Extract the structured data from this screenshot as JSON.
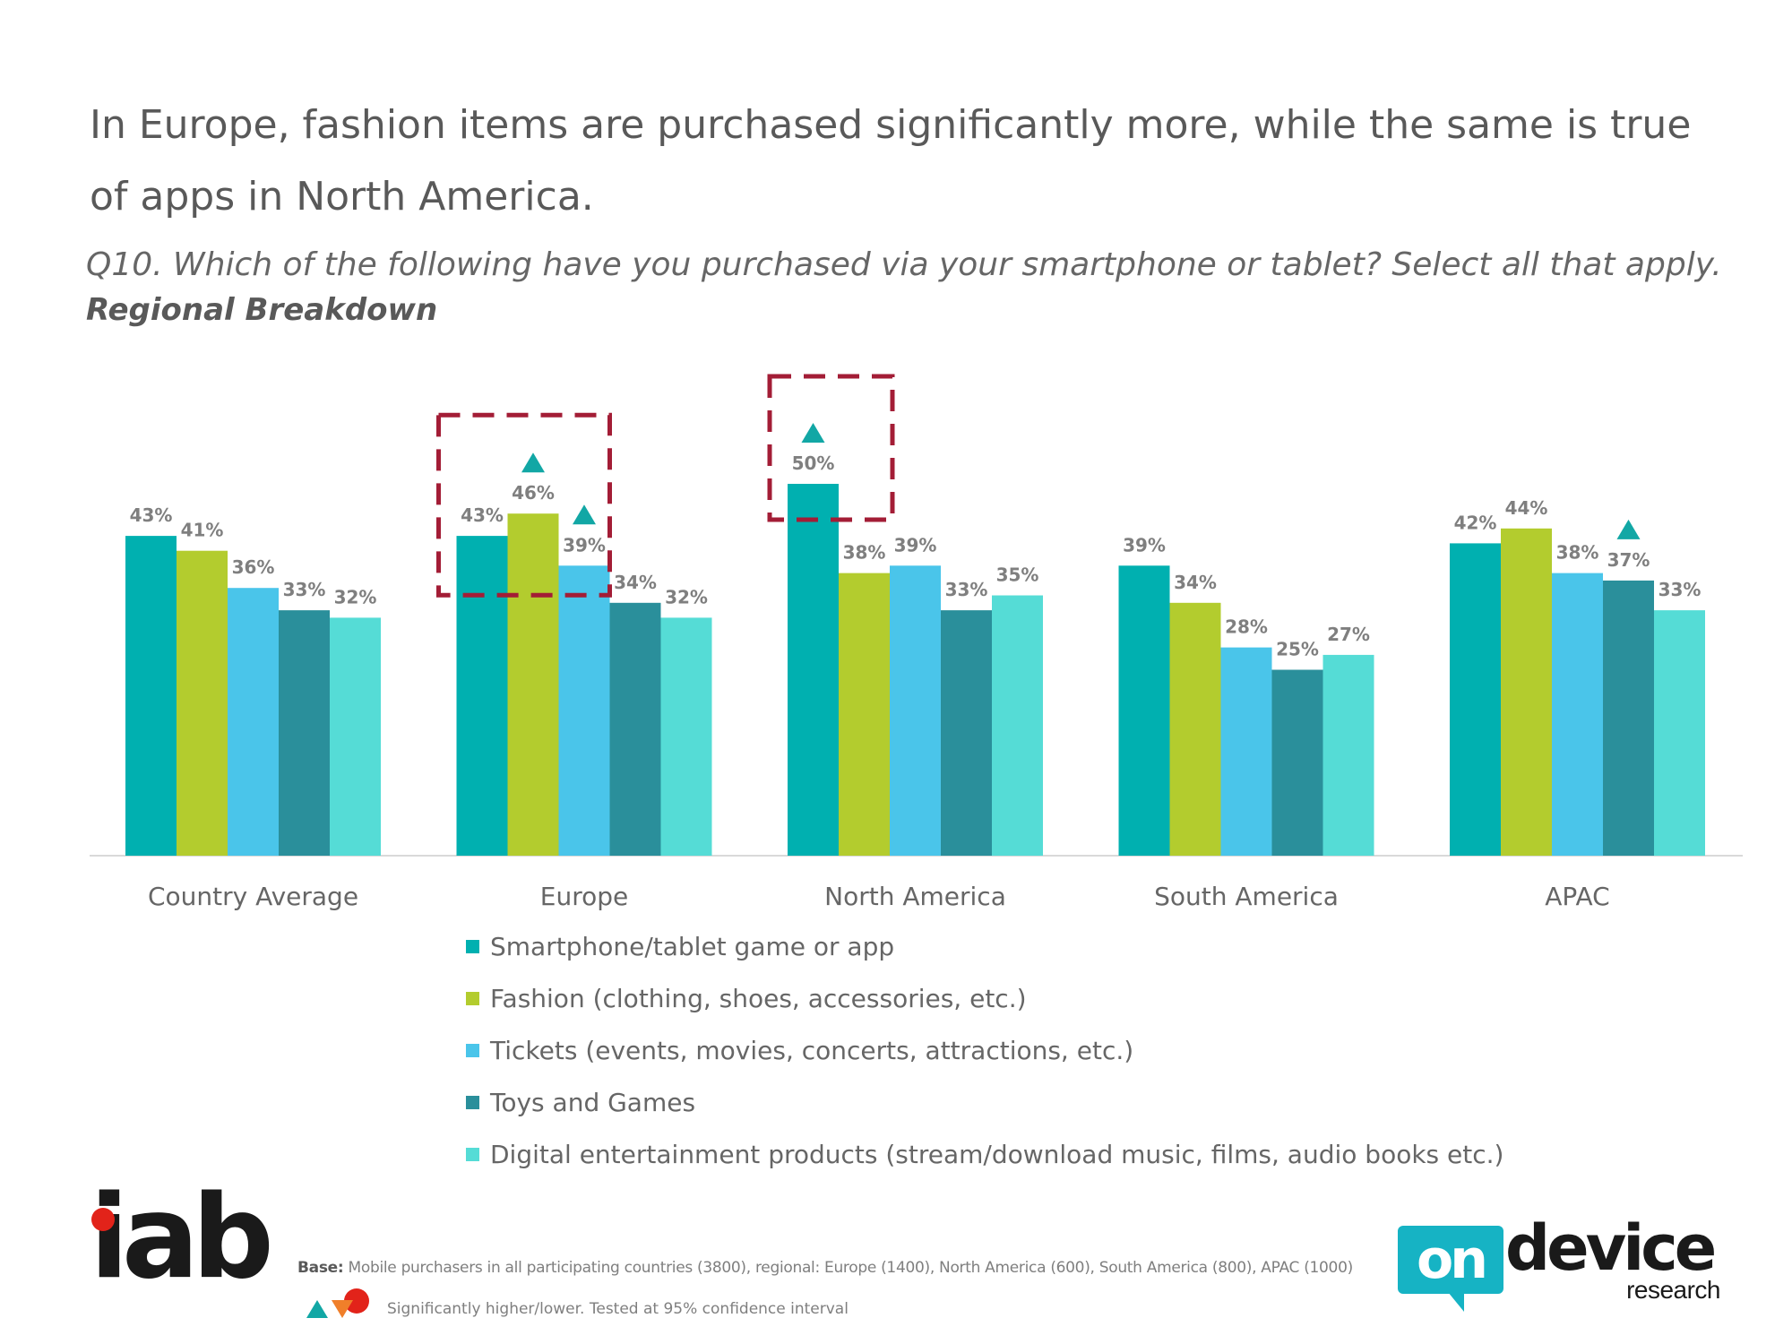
{
  "page": {
    "title": "In Europe, fashion items are purchased significantly more, while the same is true of apps in North America.",
    "question": "Q10. Which of the following have you purchased via your smartphone or tablet? Select all that apply.",
    "breakdown": "Regional Breakdown",
    "base_label": "Base:",
    "base_text": "Mobile purchasers in all participating countries  (3800), regional:  Europe (1400), North America (600), South America (800), APAC (1000)",
    "significance_note": "Significantly higher/lower. Tested at 95% confidence interval",
    "logo_left": "iab",
    "logo_right_on": "on",
    "logo_right_device": "device",
    "logo_right_research": "research"
  },
  "chart_data": {
    "type": "bar",
    "categories": [
      "Country Average",
      "Europe",
      "North America",
      "South America",
      "APAC"
    ],
    "series": [
      {
        "name": "Smartphone/tablet game or app",
        "color": "#00b0b0",
        "values": [
          43,
          43,
          50,
          39,
          42
        ]
      },
      {
        "name": "Fashion (clothing, shoes, accessories, etc.)",
        "color": "#b3cc2e",
        "values": [
          41,
          46,
          38,
          34,
          44
        ]
      },
      {
        "name": "Tickets (events, movies, concerts, attractions, etc.)",
        "color": "#4ac5ea",
        "values": [
          36,
          39,
          39,
          28,
          38
        ]
      },
      {
        "name": "Toys and Games",
        "color": "#2a8f9b",
        "values": [
          33,
          34,
          33,
          25,
          37
        ]
      },
      {
        "name": "Digital entertainment products (stream/download music, films, audio books etc.)",
        "color": "#55dcd6",
        "values": [
          32,
          32,
          35,
          27,
          33
        ]
      }
    ],
    "value_labels": [
      [
        "43%",
        "41%",
        "36%",
        "33%",
        "32%"
      ],
      [
        "43%",
        "46%",
        "39%",
        "34%",
        "32%"
      ],
      [
        "50%",
        "38%",
        "39%",
        "33%",
        "35%"
      ],
      [
        "39%",
        "34%",
        "28%",
        "25%",
        "27%"
      ],
      [
        "42%",
        "44%",
        "38%",
        "37%",
        "33%"
      ]
    ],
    "significantly_higher": [
      {
        "category": "Europe",
        "series": "Fashion (clothing, shoes, accessories, etc.)"
      },
      {
        "category": "Europe",
        "series": "Tickets (events, movies, concerts, attractions, etc.)"
      },
      {
        "category": "North America",
        "series": "Smartphone/tablet game or app"
      },
      {
        "category": "APAC",
        "series": "Toys and Games"
      }
    ],
    "highlight_boxes": [
      {
        "category": "Europe",
        "series_from": 0,
        "series_to": 2,
        "style": "dashed",
        "color": "#a31d36"
      },
      {
        "category": "North America",
        "series_from": 0,
        "series_to": 0,
        "style": "dashed",
        "color": "#a31d36"
      }
    ],
    "marker_color": "#12a7a5",
    "lower_marker_color": "#f07f2a",
    "ylim": [
      0,
      55
    ],
    "grid": false,
    "legend_position": "bottom",
    "xlabel": "",
    "ylabel": ""
  }
}
